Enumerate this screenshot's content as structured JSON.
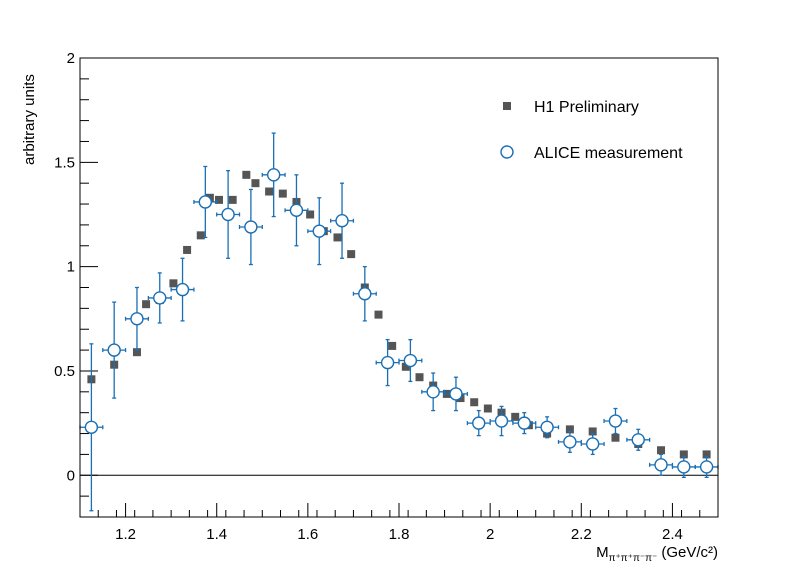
{
  "chart_data": {
    "type": "scatter",
    "title": "",
    "xlabel_main": "M",
    "xlabel_sub": "π⁺π⁺π⁻π⁻",
    "xlabel_unit": "(GeV/c²)",
    "ylabel": "arbitrary units",
    "xlim": [
      1.1,
      2.5
    ],
    "ylim": [
      -0.2,
      2.0
    ],
    "x_ticks": [
      "1.2",
      "1.4",
      "1.6",
      "1.8",
      "2",
      "2.2",
      "2.4"
    ],
    "x_tick_values": [
      1.2,
      1.4,
      1.6,
      1.8,
      2.0,
      2.2,
      2.4
    ],
    "y_ticks": [
      "0",
      "0.5",
      "1",
      "1.5",
      "2"
    ],
    "y_tick_values": [
      0,
      0.5,
      1.0,
      1.5,
      2.0
    ],
    "zero_line": 0,
    "legend_position": "top-right",
    "series": [
      {
        "name": "H1 Preliminary",
        "marker": "filled-square",
        "color": "#555555",
        "x": [
          1.125,
          1.175,
          1.225,
          1.245,
          1.275,
          1.305,
          1.335,
          1.365,
          1.385,
          1.405,
          1.435,
          1.465,
          1.485,
          1.515,
          1.545,
          1.575,
          1.605,
          1.635,
          1.665,
          1.695,
          1.725,
          1.755,
          1.785,
          1.815,
          1.845,
          1.875,
          1.905,
          1.935,
          1.965,
          1.995,
          2.025,
          2.055,
          2.085,
          2.125,
          2.175,
          2.225,
          2.275,
          2.325,
          2.375,
          2.425,
          2.475
        ],
        "y": [
          0.46,
          0.53,
          0.59,
          0.82,
          0.84,
          0.92,
          1.08,
          1.15,
          1.33,
          1.32,
          1.32,
          1.44,
          1.4,
          1.36,
          1.35,
          1.31,
          1.25,
          1.17,
          1.14,
          1.06,
          0.9,
          0.77,
          0.62,
          0.52,
          0.47,
          0.43,
          0.39,
          0.37,
          0.35,
          0.32,
          0.3,
          0.28,
          0.24,
          0.2,
          0.22,
          0.21,
          0.18,
          0.15,
          0.12,
          0.1,
          0.1
        ]
      },
      {
        "name": "ALICE measurement",
        "marker": "open-circle",
        "color": "#1a6fb5",
        "x": [
          1.125,
          1.175,
          1.225,
          1.275,
          1.325,
          1.375,
          1.425,
          1.475,
          1.525,
          1.575,
          1.625,
          1.675,
          1.725,
          1.775,
          1.825,
          1.875,
          1.925,
          1.975,
          2.025,
          2.075,
          2.125,
          2.175,
          2.225,
          2.275,
          2.325,
          2.375,
          2.425,
          2.475
        ],
        "y": [
          0.23,
          0.6,
          0.75,
          0.85,
          0.89,
          1.31,
          1.25,
          1.19,
          1.44,
          1.27,
          1.17,
          1.22,
          0.87,
          0.54,
          0.55,
          0.4,
          0.39,
          0.25,
          0.26,
          0.25,
          0.23,
          0.16,
          0.15,
          0.26,
          0.17,
          0.05,
          0.04,
          0.04
        ],
        "yerr": [
          0.4,
          0.23,
          0.15,
          0.12,
          0.15,
          0.17,
          0.21,
          0.18,
          0.2,
          0.17,
          0.16,
          0.18,
          0.13,
          0.11,
          0.1,
          0.09,
          0.08,
          0.06,
          0.07,
          0.05,
          0.05,
          0.05,
          0.05,
          0.06,
          0.05,
          0.05,
          0.05,
          0.05
        ],
        "xerr": 0.025
      }
    ]
  }
}
